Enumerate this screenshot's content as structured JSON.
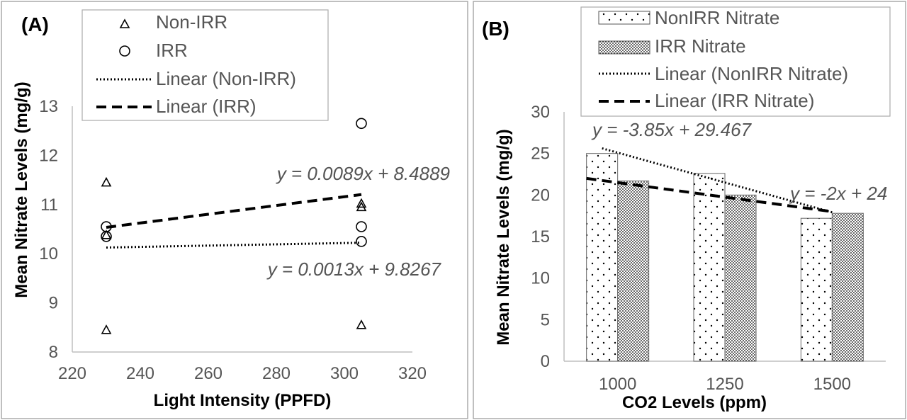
{
  "chart_data": [
    {
      "panel_label": "(A)",
      "type": "scatter",
      "xlabel": "Light Intensity (PPFD)",
      "ylabel": "Mean Nitrate Levels (mg/g)",
      "xlim": [
        220,
        320
      ],
      "ylim": [
        8,
        13
      ],
      "xticks": [
        "220",
        "240",
        "260",
        "280",
        "300",
        "320"
      ],
      "yticks": [
        "8",
        "9",
        "10",
        "11",
        "12",
        "13"
      ],
      "series": [
        {
          "name": "Non-IRR",
          "marker": "triangle",
          "points": [
            [
              230,
              11.45
            ],
            [
              230,
              10.38
            ],
            [
              230,
              8.45
            ],
            [
              305,
              11.02
            ],
            [
              305,
              10.95
            ],
            [
              305,
              8.55
            ]
          ]
        },
        {
          "name": "IRR",
          "marker": "circle",
          "points": [
            [
              230,
              10.55
            ],
            [
              230,
              10.35
            ],
            [
              305,
              12.65
            ],
            [
              305,
              10.55
            ],
            [
              305,
              10.25
            ]
          ]
        }
      ],
      "trendlines": [
        {
          "name": "Linear (Non-IRR)",
          "style": "dotted",
          "slope": 0.0013,
          "intercept": 9.8267,
          "x_range": [
            230,
            305
          ],
          "equation": "y = 0.0013x + 9.8267"
        },
        {
          "name": "Linear (IRR)",
          "style": "dashed",
          "slope": 0.0089,
          "intercept": 8.4889,
          "x_range": [
            230,
            305
          ],
          "equation": "y = 0.0089x + 8.4889"
        }
      ],
      "legend": [
        "Non-IRR",
        "IRR",
        "Linear (Non-IRR)",
        "Linear (IRR)"
      ]
    },
    {
      "panel_label": "(B)",
      "type": "bar",
      "xlabel": "CO2 Levels (ppm)",
      "ylabel": "Mean Nitrate Levels (mg/g)",
      "ylim": [
        0,
        30
      ],
      "yticks": [
        "0",
        "5",
        "10",
        "15",
        "20",
        "25",
        "30"
      ],
      "categories": [
        "1000",
        "1250",
        "1500"
      ],
      "series": [
        {
          "name": "NonIRR Nitrate",
          "pattern": "sparse-dots",
          "values": [
            25,
            22.6,
            17.2
          ]
        },
        {
          "name": "IRR Nitrate",
          "pattern": "dense-dots",
          "values": [
            21.7,
            20,
            17.8
          ]
        }
      ],
      "trendlines": [
        {
          "name": "Linear (NonIRR Nitrate)",
          "style": "dotted",
          "slope": -3.85,
          "intercept": 29.467,
          "equation": "y = -3.85x + 29.467"
        },
        {
          "name": "Linear (IRR Nitrate)",
          "style": "dashed",
          "slope": -2,
          "intercept": 24,
          "equation": "y = -2x + 24"
        }
      ],
      "legend": [
        "NonIRR Nitrate",
        "IRR Nitrate",
        "Linear (NonIRR Nitrate)",
        "Linear (IRR Nitrate)"
      ]
    }
  ]
}
